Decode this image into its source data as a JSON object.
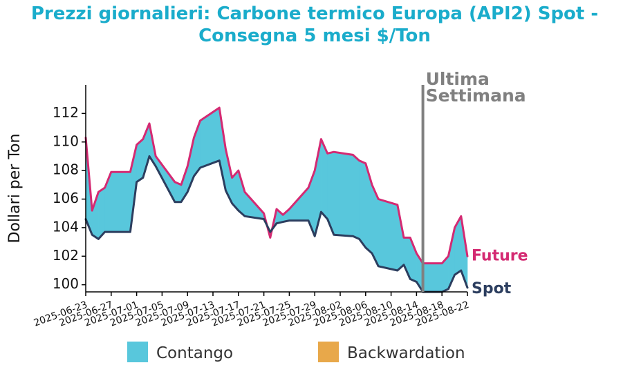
{
  "chart_data": {
    "type": "area",
    "title_line1": "Prezzi giornalieri: Carbone termico Europa (API2) Spot -",
    "title_line2": "Consegna 5 mesi $/Ton",
    "ylabel": "Dollari per Ton",
    "ylim": [
      99.5,
      114
    ],
    "y_ticks": [
      100,
      102,
      104,
      106,
      108,
      110,
      112
    ],
    "x_tick_labels": [
      "2025-06-23",
      "2025-06-27",
      "2025-07-01",
      "2025-07-05",
      "2025-07-09",
      "2025-07-13",
      "2025-07-17",
      "2025-07-21",
      "2025-07-25",
      "2025-07-29",
      "2025-08-02",
      "2025-08-06",
      "2025-08-10",
      "2025-08-14",
      "2025-08-18",
      "2025-08-22"
    ],
    "x": [
      "2025-06-23",
      "2025-06-24",
      "2025-06-25",
      "2025-06-26",
      "2025-06-27",
      "2025-06-30",
      "2025-07-01",
      "2025-07-02",
      "2025-07-03",
      "2025-07-04",
      "2025-07-07",
      "2025-07-08",
      "2025-07-09",
      "2025-07-10",
      "2025-07-11",
      "2025-07-14",
      "2025-07-15",
      "2025-07-16",
      "2025-07-17",
      "2025-07-18",
      "2025-07-21",
      "2025-07-22",
      "2025-07-23",
      "2025-07-24",
      "2025-07-25",
      "2025-07-28",
      "2025-07-29",
      "2025-07-30",
      "2025-07-31",
      "2025-08-01",
      "2025-08-04",
      "2025-08-05",
      "2025-08-06",
      "2025-08-07",
      "2025-08-08",
      "2025-08-11",
      "2025-08-12",
      "2025-08-13",
      "2025-08-14",
      "2025-08-15",
      "2025-08-18",
      "2025-08-19",
      "2025-08-20",
      "2025-08-21",
      "2025-08-22"
    ],
    "series": [
      {
        "name": "Future",
        "color": "#d42a72",
        "values": [
          110.3,
          105.2,
          106.5,
          106.8,
          107.9,
          107.9,
          109.8,
          110.2,
          111.3,
          109.0,
          107.2,
          107.0,
          108.3,
          110.3,
          111.5,
          112.4,
          109.5,
          107.5,
          108.0,
          106.5,
          105.0,
          103.3,
          105.3,
          104.9,
          105.3,
          106.8,
          108.0,
          110.2,
          109.2,
          109.3,
          109.1,
          108.7,
          108.5,
          107.0,
          106.0,
          105.6,
          103.3,
          103.3,
          102.2,
          101.5,
          101.5,
          102.0,
          104.0,
          104.8,
          102.0
        ]
      },
      {
        "name": "Spot",
        "color": "#2c3e5f",
        "values": [
          104.6,
          103.5,
          103.2,
          103.7,
          103.7,
          103.7,
          107.2,
          107.5,
          109.0,
          108.3,
          105.8,
          105.8,
          106.5,
          107.6,
          108.2,
          108.7,
          106.6,
          105.7,
          105.2,
          104.8,
          104.6,
          103.7,
          104.3,
          104.4,
          104.5,
          104.5,
          103.4,
          105.1,
          104.6,
          103.5,
          103.4,
          103.2,
          102.6,
          102.2,
          101.3,
          101.0,
          101.4,
          100.4,
          100.2,
          99.5,
          99.5,
          99.7,
          100.7,
          101.0,
          99.8
        ]
      }
    ],
    "legend": [
      {
        "label": "Contango",
        "color": "#58c7dc"
      },
      {
        "label": "Backwardation",
        "color": "#e8a84a"
      }
    ],
    "legend_position": "bottom",
    "annotation_date": "2025-08-15",
    "annotation_text_line1": "Ultima",
    "annotation_text_line2": "Settimana",
    "annotation_color": "#808080",
    "grid": false
  }
}
